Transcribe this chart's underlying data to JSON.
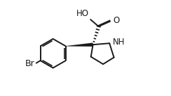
{
  "bg_color": "#ffffff",
  "line_color": "#1a1a1a",
  "line_width": 1.4,
  "font_size": 8.5,
  "fig_width": 2.44,
  "fig_height": 1.38,
  "dpi": 100,
  "xlim": [
    0,
    10
  ],
  "ylim": [
    0,
    7
  ]
}
